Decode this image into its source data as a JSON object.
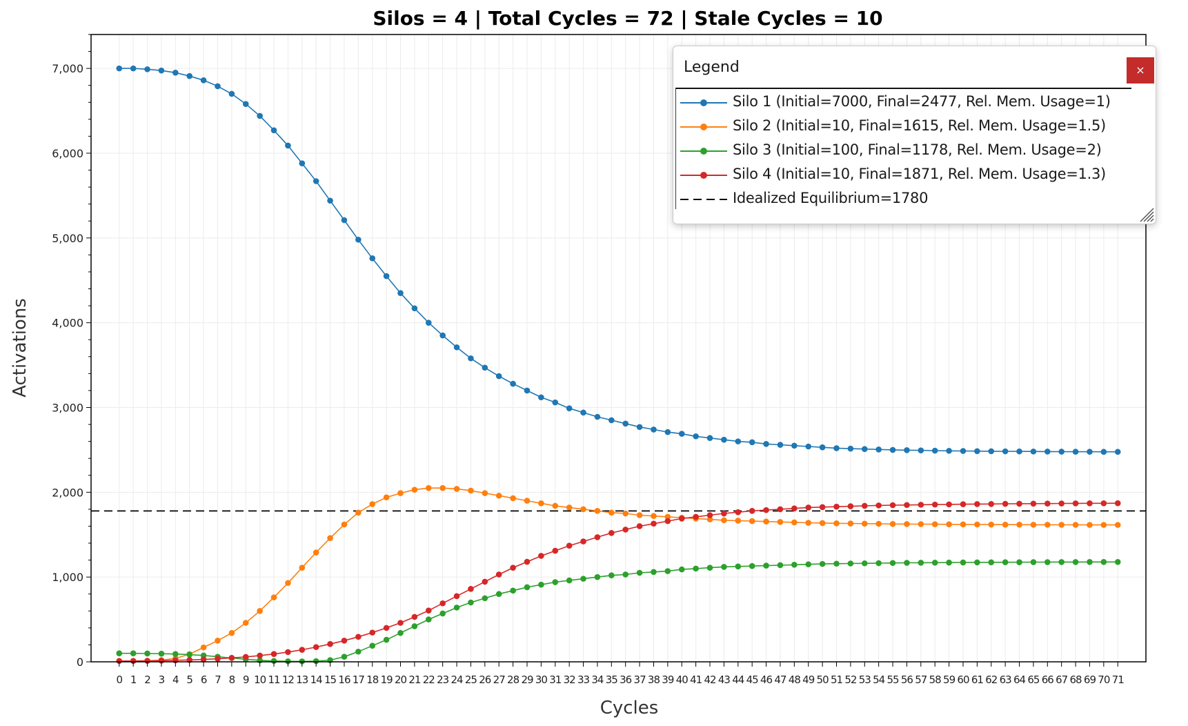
{
  "chart_data": {
    "type": "line",
    "title": "Silos = 4 | Total Cycles = 72 | Stale Cycles = 10",
    "xlabel": "Cycles",
    "ylabel": "Activations",
    "ylim": [
      0,
      7400
    ],
    "xlim": [
      -2,
      73
    ],
    "yticks": [
      0,
      1000,
      2000,
      3000,
      4000,
      5000,
      6000,
      7000
    ],
    "ytick_labels": [
      "0",
      "1,000",
      "2,000",
      "3,000",
      "4,000",
      "5,000",
      "6,000",
      "7,000"
    ],
    "x": [
      0,
      1,
      2,
      3,
      4,
      5,
      6,
      7,
      8,
      9,
      10,
      11,
      12,
      13,
      14,
      15,
      16,
      17,
      18,
      19,
      20,
      21,
      22,
      23,
      24,
      25,
      26,
      27,
      28,
      29,
      30,
      31,
      32,
      33,
      34,
      35,
      36,
      37,
      38,
      39,
      40,
      41,
      42,
      43,
      44,
      45,
      46,
      47,
      48,
      49,
      50,
      51,
      52,
      53,
      54,
      55,
      56,
      57,
      58,
      59,
      60,
      61,
      62,
      63,
      64,
      65,
      66,
      67,
      68,
      69,
      70,
      71
    ],
    "grid": true,
    "legend_position": "top-right",
    "series": [
      {
        "name": "Silo 1 (Initial=7000, Final=2477, Rel. Mem. Usage=1)",
        "color": "#1f77b4",
        "values": [
          7000,
          7000,
          6990,
          6975,
          6950,
          6910,
          6860,
          6790,
          6700,
          6580,
          6440,
          6270,
          6090,
          5880,
          5670,
          5440,
          5210,
          4980,
          4760,
          4550,
          4350,
          4170,
          4000,
          3850,
          3710,
          3580,
          3470,
          3370,
          3280,
          3200,
          3120,
          3060,
          2990,
          2940,
          2890,
          2850,
          2810,
          2770,
          2740,
          2710,
          2690,
          2660,
          2640,
          2620,
          2600,
          2590,
          2570,
          2560,
          2550,
          2540,
          2530,
          2520,
          2515,
          2510,
          2505,
          2500,
          2497,
          2494,
          2491,
          2489,
          2487,
          2485,
          2484,
          2483,
          2482,
          2481,
          2480,
          2479,
          2478,
          2478,
          2477,
          2477
        ]
      },
      {
        "name": "Silo 2 (Initial=10, Final=1615, Rel. Mem. Usage=1.5)",
        "color": "#ff7f0e",
        "values": [
          10,
          10,
          12,
          20,
          40,
          90,
          170,
          250,
          340,
          460,
          600,
          760,
          930,
          1110,
          1290,
          1460,
          1620,
          1760,
          1860,
          1940,
          1990,
          2030,
          2050,
          2050,
          2040,
          2020,
          1990,
          1960,
          1930,
          1900,
          1870,
          1840,
          1820,
          1800,
          1780,
          1760,
          1750,
          1730,
          1720,
          1710,
          1700,
          1690,
          1680,
          1670,
          1665,
          1660,
          1655,
          1650,
          1645,
          1640,
          1637,
          1634,
          1632,
          1630,
          1628,
          1626,
          1625,
          1624,
          1623,
          1622,
          1621,
          1620,
          1619,
          1618,
          1618,
          1617,
          1617,
          1616,
          1616,
          1615,
          1615,
          1615
        ]
      },
      {
        "name": "Silo 3 (Initial=100, Final=1178, Rel. Mem. Usage=2)",
        "color": "#2ca02c",
        "values": [
          100,
          100,
          98,
          96,
          92,
          85,
          75,
          60,
          45,
          30,
          18,
          10,
          6,
          5,
          8,
          20,
          60,
          120,
          190,
          260,
          340,
          420,
          500,
          570,
          640,
          700,
          750,
          800,
          840,
          880,
          910,
          940,
          960,
          980,
          1000,
          1020,
          1030,
          1050,
          1060,
          1070,
          1090,
          1100,
          1110,
          1120,
          1125,
          1130,
          1135,
          1140,
          1145,
          1150,
          1155,
          1158,
          1160,
          1162,
          1164,
          1166,
          1168,
          1169,
          1170,
          1171,
          1172,
          1173,
          1174,
          1175,
          1175,
          1176,
          1176,
          1177,
          1177,
          1178,
          1178,
          1178
        ]
      },
      {
        "name": "Silo 4 (Initial=10, Final=1871, Rel. Mem. Usage=1.3)",
        "color": "#d62728",
        "values": [
          10,
          10,
          12,
          14,
          18,
          22,
          28,
          36,
          46,
          58,
          74,
          92,
          115,
          142,
          174,
          210,
          250,
          295,
          345,
          400,
          460,
          530,
          605,
          690,
          775,
          860,
          945,
          1030,
          1110,
          1180,
          1250,
          1310,
          1370,
          1420,
          1470,
          1520,
          1560,
          1600,
          1630,
          1660,
          1690,
          1710,
          1730,
          1750,
          1765,
          1780,
          1790,
          1800,
          1810,
          1820,
          1825,
          1830,
          1835,
          1840,
          1845,
          1848,
          1850,
          1853,
          1855,
          1857,
          1859,
          1861,
          1862,
          1864,
          1865,
          1866,
          1867,
          1868,
          1869,
          1870,
          1870,
          1871
        ]
      }
    ],
    "reference_line": {
      "name": "Idealized Equilibrium=1780",
      "value": 1780,
      "color": "#000000",
      "style": "dashed"
    }
  },
  "legend": {
    "title": "Legend",
    "close_label": "×"
  }
}
